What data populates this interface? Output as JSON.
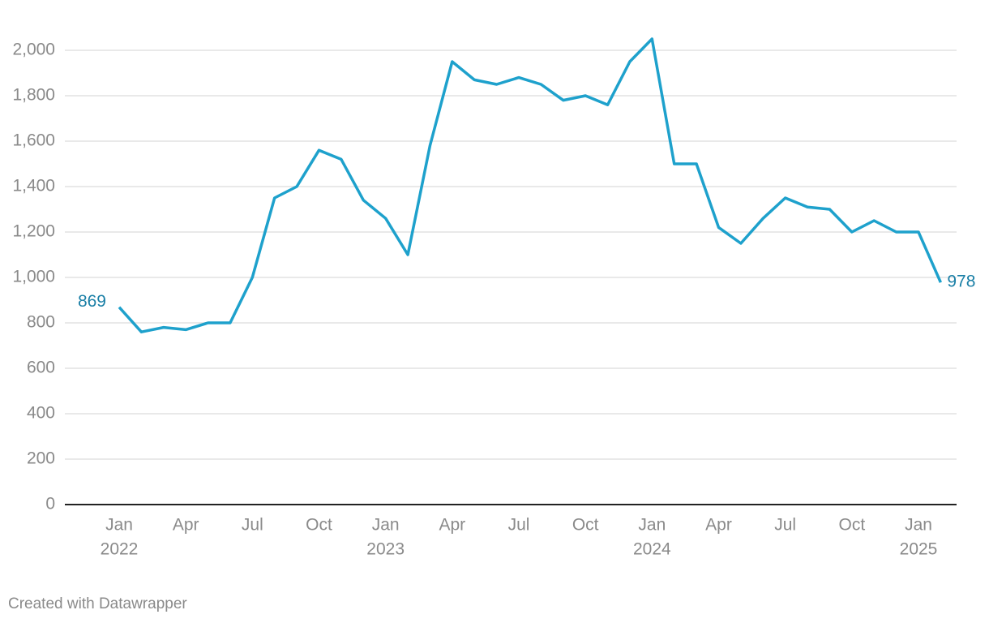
{
  "chart_data": {
    "type": "line",
    "x": [
      "2022-01",
      "2022-02",
      "2022-03",
      "2022-04",
      "2022-05",
      "2022-06",
      "2022-07",
      "2022-08",
      "2022-09",
      "2022-10",
      "2022-11",
      "2022-12",
      "2023-01",
      "2023-02",
      "2023-03",
      "2023-04",
      "2023-05",
      "2023-06",
      "2023-07",
      "2023-08",
      "2023-09",
      "2023-10",
      "2023-11",
      "2023-12",
      "2024-01",
      "2024-02",
      "2024-03",
      "2024-04",
      "2024-05",
      "2024-06",
      "2024-07",
      "2024-08",
      "2024-09",
      "2024-10",
      "2024-11",
      "2024-12",
      "2025-01",
      "2025-02"
    ],
    "series": [
      {
        "color": "#1ea1cc",
        "values": [
          869,
          760,
          780,
          770,
          800,
          800,
          1000,
          1350,
          1400,
          1560,
          1520,
          1340,
          1260,
          1100,
          1580,
          1950,
          1870,
          1850,
          1880,
          1850,
          1780,
          1800,
          1760,
          1950,
          2050,
          1500,
          1500,
          1220,
          1150,
          1260,
          1350,
          1310,
          1300,
          1200,
          1250,
          1200,
          1200,
          978
        ]
      }
    ],
    "label_color": "#1a7fa6",
    "ylim": [
      0,
      2000
    ],
    "yticks": [
      0,
      200,
      400,
      600,
      800,
      {
        "value": 1000,
        "label": "1,000"
      },
      {
        "value": 1200,
        "label": "1,200"
      },
      {
        "value": 1400,
        "label": "1,400"
      },
      {
        "value": 1600,
        "label": "1,600"
      },
      {
        "value": 1800,
        "label": "1,800"
      },
      {
        "value": 2000,
        "label": "2,000"
      }
    ],
    "xticks": [
      {
        "value": "2022-01",
        "label": "Jan"
      },
      {
        "value": "2022-04",
        "label": "Apr"
      },
      {
        "value": "2022-07",
        "label": "Jul"
      },
      {
        "value": "2022-10",
        "label": "Oct"
      },
      {
        "value": "2023-01",
        "label": "Jan"
      },
      {
        "value": "2023-04",
        "label": "Apr"
      },
      {
        "value": "2023-07",
        "label": "Jul"
      },
      {
        "value": "2023-10",
        "label": "Oct"
      },
      {
        "value": "2024-01",
        "label": "Jan"
      },
      {
        "value": "2024-04",
        "label": "Apr"
      },
      {
        "value": "2024-07",
        "label": "Jul"
      },
      {
        "value": "2024-10",
        "label": "Oct"
      },
      {
        "value": "2025-01",
        "label": "Jan"
      }
    ],
    "xtick_years": [
      {
        "value": "2022-01",
        "label": "2022"
      },
      {
        "value": "2023-01",
        "label": "2023"
      },
      {
        "value": "2024-01",
        "label": "2024"
      },
      {
        "value": "2025-01",
        "label": "2025"
      }
    ],
    "grid": true,
    "credit": "Created with Datawrapper"
  }
}
